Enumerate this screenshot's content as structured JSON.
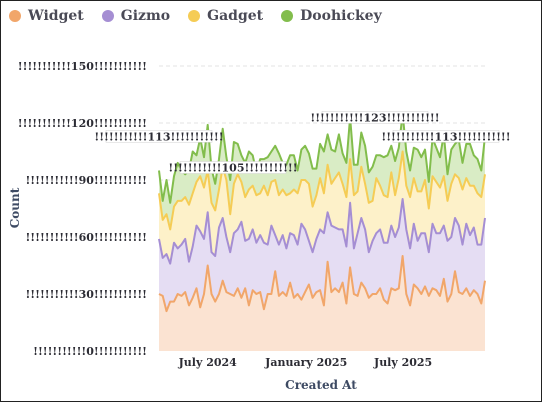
{
  "chart_data": {
    "type": "area",
    "stacked": true,
    "xlabel": "Created At",
    "ylabel": "Count",
    "x_range": [
      "2024-04-01",
      "2025-12-01"
    ],
    "ylim": [
      0,
      150
    ],
    "y_ticks": [
      0,
      30,
      60,
      90,
      120,
      150
    ],
    "y_tick_labels": [
      "!!!!!!!!!!!0!!!!!!!!!!!",
      "!!!!!!!!!!!30!!!!!!!!!!!",
      "!!!!!!!!!!!60!!!!!!!!!!!",
      "!!!!!!!!!!!90!!!!!!!!!!!",
      "!!!!!!!!!!!120!!!!!!!!!!!",
      "!!!!!!!!!!!150!!!!!!!!!!!"
    ],
    "x_ticks": [
      {
        "date": "2024-07-01",
        "label": "July 2024"
      },
      {
        "date": "2025-01-01",
        "label": "January 2025"
      },
      {
        "date": "2025-07-01",
        "label": "July 2025"
      }
    ],
    "grid": true,
    "legend_position": "top-left",
    "annotations": [
      {
        "label": "!!!!!!!!!!!113!!!!!!!!!!!",
        "value": 113
      },
      {
        "label": "!!!!!!!!!!!105!!!!!!!!!!!",
        "value": 105
      },
      {
        "label": "!!!!!!!!!!!123!!!!!!!!!!!",
        "value": 123
      },
      {
        "label": "!!!!!!!!!!!113!!!!!!!!!!!",
        "value": 113
      }
    ],
    "x": [
      "2024-04-01",
      "2024-04-08",
      "2024-04-15",
      "2024-04-22",
      "2024-04-29",
      "2024-05-06",
      "2024-05-13",
      "2024-05-20",
      "2024-05-27",
      "2024-06-03",
      "2024-06-10",
      "2024-06-17",
      "2024-06-24",
      "2024-07-01",
      "2024-07-08",
      "2024-07-15",
      "2024-07-22",
      "2024-07-29",
      "2024-08-05",
      "2024-08-12",
      "2024-08-19",
      "2024-08-26",
      "2024-09-02",
      "2024-09-09",
      "2024-09-16",
      "2024-09-23",
      "2024-09-30",
      "2024-10-07",
      "2024-10-14",
      "2024-10-21",
      "2024-10-28",
      "2024-11-04",
      "2024-11-11",
      "2024-11-18",
      "2024-11-25",
      "2024-12-02",
      "2024-12-09",
      "2024-12-16",
      "2024-12-23",
      "2024-12-30",
      "2025-01-06",
      "2025-01-13",
      "2025-01-20",
      "2025-01-27",
      "2025-02-03",
      "2025-02-10",
      "2025-02-17",
      "2025-02-24",
      "2025-03-03",
      "2025-03-10",
      "2025-03-17",
      "2025-03-24",
      "2025-03-31",
      "2025-04-07",
      "2025-04-14",
      "2025-04-21",
      "2025-04-28",
      "2025-05-05",
      "2025-05-12",
      "2025-05-19",
      "2025-05-26",
      "2025-06-02",
      "2025-06-09",
      "2025-06-16",
      "2025-06-23",
      "2025-06-30",
      "2025-07-07",
      "2025-07-14",
      "2025-07-21",
      "2025-07-28",
      "2025-08-04",
      "2025-08-11",
      "2025-08-18",
      "2025-08-25",
      "2025-09-01",
      "2025-09-08",
      "2025-09-15",
      "2025-09-22",
      "2025-09-29",
      "2025-10-06",
      "2025-10-13",
      "2025-10-20",
      "2025-10-27",
      "2025-11-03",
      "2025-11-10",
      "2025-11-17",
      "2025-11-24",
      "2025-12-01"
    ],
    "series": [
      {
        "name": "Widget",
        "color": "#f1a66a",
        "fill": "#fbe3d2",
        "values": [
          30,
          29,
          21,
          26,
          26,
          30,
          29,
          31,
          24,
          28,
          33,
          23,
          30,
          45,
          30,
          26,
          30,
          37,
          31,
          30,
          29,
          33,
          28,
          33,
          24,
          32,
          30,
          31,
          22,
          30,
          30,
          42,
          29,
          31,
          29,
          36,
          28,
          30,
          27,
          31,
          35,
          28,
          31,
          32,
          24,
          47,
          31,
          33,
          31,
          36,
          25,
          44,
          30,
          29,
          36,
          33,
          28,
          30,
          30,
          33,
          27,
          25,
          33,
          32,
          33,
          50,
          30,
          24,
          35,
          33,
          30,
          34,
          29,
          33,
          32,
          29,
          38,
          26,
          30,
          42,
          31,
          30,
          33,
          29,
          32,
          30,
          25,
          37
        ]
      },
      {
        "name": "Gizmo",
        "color": "#a58ed3",
        "fill": "#e5ddf3",
        "values": [
          29,
          20,
          30,
          20,
          31,
          24,
          27,
          28,
          23,
          27,
          33,
          40,
          29,
          28,
          22,
          24,
          35,
          33,
          29,
          22,
          33,
          31,
          40,
          25,
          35,
          32,
          27,
          30,
          35,
          26,
          36,
          19,
          27,
          30,
          25,
          26,
          33,
          26,
          40,
          33,
          23,
          24,
          28,
          32,
          38,
          26,
          35,
          32,
          33,
          28,
          30,
          34,
          24,
          33,
          34,
          31,
          24,
          28,
          32,
          31,
          30,
          32,
          33,
          28,
          32,
          30,
          34,
          30,
          32,
          25,
          32,
          28,
          23,
          34,
          30,
          33,
          28,
          32,
          30,
          28,
          35,
          26,
          34,
          32,
          33,
          26,
          31,
          33
        ]
      },
      {
        "name": "Gadget",
        "color": "#f5cc55",
        "fill": "#fdf1c9",
        "values": [
          24,
          20,
          21,
          18,
          19,
          25,
          23,
          22,
          30,
          28,
          23,
          29,
          27,
          22,
          26,
          24,
          20,
          27,
          30,
          20,
          26,
          29,
          21,
          23,
          26,
          23,
          25,
          22,
          30,
          26,
          23,
          29,
          26,
          24,
          28,
          21,
          24,
          27,
          23,
          26,
          30,
          24,
          23,
          27,
          21,
          25,
          22,
          26,
          30,
          24,
          26,
          23,
          28,
          22,
          27,
          24,
          26,
          21,
          29,
          23,
          25,
          24,
          28,
          22,
          26,
          25,
          23,
          27,
          24,
          26,
          22,
          28,
          23,
          25,
          27,
          24,
          26,
          21,
          28,
          23,
          25,
          29,
          24,
          26,
          22,
          27,
          25,
          23
        ]
      },
      {
        "name": "Doohickey",
        "color": "#82bd4c",
        "fill": "#d9ecc5",
        "values": [
          12,
          10,
          18,
          14,
          16,
          20,
          16,
          12,
          18,
          22,
          14,
          20,
          16,
          24,
          18,
          14,
          16,
          20,
          12,
          18,
          22,
          16,
          14,
          18,
          20,
          16,
          12,
          18,
          14,
          20,
          16,
          18,
          22,
          14,
          16,
          20,
          18,
          12,
          16,
          18,
          16,
          20,
          14,
          18,
          22,
          16,
          18,
          14,
          20,
          16,
          18,
          22,
          16,
          14,
          18,
          20,
          16,
          18,
          12,
          16,
          20,
          22,
          14,
          18,
          16,
          20,
          18,
          14,
          16,
          22,
          18,
          16,
          14,
          20,
          18,
          16,
          22,
          14,
          18,
          16,
          20,
          14,
          18,
          22,
          16,
          18,
          14,
          20
        ]
      }
    ]
  }
}
